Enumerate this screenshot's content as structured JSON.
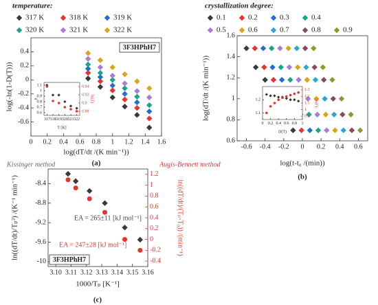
{
  "chart_data": [
    {
      "type": "scatter",
      "title": "temperature:",
      "xlabel": "log(dT/dt /(K min⁻¹))",
      "ylabel": "log(-ln(1-D(T)))",
      "label_box": "3F3HPhH7",
      "caption": "(a)",
      "x": [
        0.7,
        0.85,
        1.0,
        1.15,
        1.3,
        1.45
      ],
      "xlim": [
        0,
        1.6
      ],
      "xticks": [
        0,
        0.2,
        0.4,
        0.6,
        0.8,
        1,
        1.2,
        1.4,
        1.6
      ],
      "ylim": [
        -0.8,
        0.6
      ],
      "yticks": [
        -0.6,
        -0.4,
        -0.2,
        0,
        0.2,
        0.4
      ],
      "series": [
        {
          "name": "317 K",
          "color": "#3a3a3a",
          "marker": "diamond",
          "values": [
            0.02,
            -0.1,
            -0.25,
            -0.38,
            -0.5,
            -0.68
          ]
        },
        {
          "name": "318 K",
          "color": "#e8342e",
          "marker": "diamond",
          "values": [
            0.1,
            -0.02,
            -0.15,
            -0.28,
            -0.4,
            -0.55
          ]
        },
        {
          "name": "319 K",
          "color": "#1f6fd1",
          "marker": "diamond",
          "values": [
            0.16,
            0.04,
            -0.08,
            -0.2,
            -0.32,
            -0.45
          ]
        },
        {
          "name": "320 K",
          "color": "#1aa58a",
          "marker": "diamond",
          "values": [
            0.22,
            0.1,
            0,
            -0.12,
            -0.24,
            -0.36
          ]
        },
        {
          "name": "321 K",
          "color": "#a77bd6",
          "marker": "diamond",
          "values": [
            0.3,
            0.18,
            0.06,
            -0.05,
            -0.16,
            -0.25
          ]
        },
        {
          "name": "322 K",
          "color": "#d9a51c",
          "marker": "diamond",
          "values": [
            0.38,
            0.28,
            0.18,
            0.08,
            -0.02,
            -0.12
          ]
        }
      ]
    },
    {
      "type": "scatter",
      "xlabel": "T [K]",
      "ylabel": "n",
      "y2label": "ln(Z)",
      "x": [
        317,
        318,
        319,
        320,
        321,
        322
      ],
      "xlim": [
        316.5,
        322.5
      ],
      "xticks": [
        317,
        318,
        319,
        320,
        321,
        322
      ],
      "ylim": [
        0.55,
        1.15
      ],
      "yticks": [
        0.6,
        0.7,
        0.8,
        0.9,
        1,
        1.1
      ],
      "y2lim": [
        0.87,
        0.95
      ],
      "y2ticks": [
        0.88,
        0.9,
        0.92,
        0.94
      ],
      "series": [
        {
          "color": "#333333",
          "marker": "diamond",
          "values": [
            1.1,
            0.92,
            0.92,
            0.8,
            0.72,
            0.68
          ]
        },
        {
          "color": "#e8342e",
          "marker": "circle",
          "axis": "y2",
          "values": [
            0.94,
            0.905,
            0.9,
            0.89,
            0.885,
            0.88
          ]
        }
      ]
    },
    {
      "type": "scatter",
      "title": "crystallization degree:",
      "xlabel": "log(t-t₀ /(min))",
      "ylabel": "log(dT/dt /(K min⁻¹))",
      "caption": "(b)",
      "xlim": [
        -0.7,
        0.7
      ],
      "xticks": [
        -0.6,
        -0.4,
        -0.2,
        0,
        0.2,
        0.4,
        0.6
      ],
      "ylim": [
        0.6,
        1.6
      ],
      "yticks": [
        0.6,
        0.8,
        1,
        1.2,
        1.4,
        1.6
      ],
      "series": [
        {
          "name": "0.1",
          "color": "#3a3a3a",
          "marker": "diamond",
          "x": [
            -0.6,
            -0.5,
            -0.4,
            -0.3,
            -0.2,
            -0.1
          ],
          "values": [
            1.48,
            1.3,
            1.18,
            1.0,
            0.85,
            0.7
          ]
        },
        {
          "name": "0.2",
          "color": "#e8342e",
          "marker": "diamond",
          "x": [
            -0.51,
            -0.41,
            -0.31,
            -0.21,
            -0.11,
            -0.01
          ],
          "values": [
            1.48,
            1.3,
            1.18,
            1.0,
            0.85,
            0.7
          ]
        },
        {
          "name": "0.3",
          "color": "#1f6fd1",
          "marker": "diamond",
          "x": [
            -0.42,
            -0.32,
            -0.22,
            -0.12,
            -0.02,
            0.08
          ],
          "values": [
            1.48,
            1.3,
            1.18,
            1.0,
            0.85,
            0.7
          ]
        },
        {
          "name": "0.4",
          "color": "#1aa58a",
          "marker": "diamond",
          "x": [
            -0.33,
            -0.23,
            -0.13,
            -0.03,
            0.07,
            0.17
          ],
          "values": [
            1.48,
            1.3,
            1.18,
            1.0,
            0.85,
            0.7
          ]
        },
        {
          "name": "0.5",
          "color": "#a77bd6",
          "marker": "diamond",
          "x": [
            -0.24,
            -0.14,
            -0.04,
            0.06,
            0.16,
            0.26
          ],
          "values": [
            1.48,
            1.3,
            1.18,
            1.0,
            0.85,
            0.7
          ]
        },
        {
          "name": "0.6",
          "color": "#d9a51c",
          "marker": "diamond",
          "x": [
            -0.15,
            -0.05,
            0.05,
            0.15,
            0.25,
            0.35
          ],
          "values": [
            1.48,
            1.3,
            1.18,
            1.0,
            0.85,
            0.7
          ]
        },
        {
          "name": "0.7",
          "color": "#2aa6d9",
          "marker": "diamond",
          "x": [
            -0.06,
            0.04,
            0.14,
            0.24,
            0.34,
            0.44
          ],
          "values": [
            1.48,
            1.3,
            1.18,
            1.0,
            0.85,
            0.7
          ]
        },
        {
          "name": "0.8",
          "color": "#8a4a5a",
          "marker": "diamond",
          "x": [
            0.03,
            0.13,
            0.23,
            0.33,
            0.43,
            0.53
          ],
          "values": [
            1.48,
            1.3,
            1.18,
            1.0,
            0.85,
            0.7
          ]
        },
        {
          "name": "0.9",
          "color": "#8f9a2a",
          "marker": "diamond",
          "x": [
            0.12,
            0.22,
            0.32,
            0.42,
            0.52,
            0.62
          ],
          "values": [
            1.48,
            1.3,
            1.18,
            1.0,
            0.85,
            0.7
          ]
        }
      ]
    },
    {
      "type": "scatter",
      "xlabel": "D(T)",
      "y2label": "ln(F)",
      "x": [
        0.1,
        0.2,
        0.3,
        0.4,
        0.5,
        0.6,
        0.7,
        0.8,
        0.9
      ],
      "xlim": [
        0,
        1
      ],
      "xticks": [
        0,
        0.2,
        0.4,
        0.6,
        0.8,
        1
      ],
      "ylim": [
        1.05,
        1.3
      ],
      "yticks": [
        1.1,
        1.2
      ],
      "y2lim": [
        0.85,
        1.35
      ],
      "y2ticks": [
        0.9,
        1,
        1.1,
        1.2,
        1.3
      ],
      "series": [
        {
          "color": "#333333",
          "marker": "diamond",
          "values": [
            1.24,
            1.23,
            1.23,
            1.22,
            1.22,
            1.21,
            1.2,
            1.2,
            1.19
          ]
        },
        {
          "color": "#e8342e",
          "marker": "circle",
          "axis": "y2",
          "values": [
            0.95,
            1.05,
            1.1,
            1.15,
            1.18,
            1.2,
            1.22,
            1.24,
            1.26
          ]
        }
      ]
    },
    {
      "type": "scatter",
      "xlabel": "1000/Tₚ [K⁻¹]",
      "ylabel": "ln((dT/dt)/Tₚ²) /(K⁻¹ min⁻¹)",
      "y2label": "ln((dT/dt)/(Tₚ-T₀)) /(min⁻¹)",
      "label_box": "3F3HPhH7",
      "caption": "(c)",
      "annotations": [
        "Kissinger method",
        "Augis-Bennett method",
        "EA = 265±11 [kJ mol⁻¹]",
        "EA = 247±28 [kJ mol⁻¹]"
      ],
      "x": [
        3.108,
        3.113,
        3.122,
        3.132,
        3.145,
        3.155
      ],
      "xlim": [
        3.095,
        3.16
      ],
      "xticks": [
        {
          "value": 3.1,
          "label": "3.10"
        },
        3.11,
        3.12,
        3.13,
        3.14,
        3.15,
        3.16
      ],
      "ylim": [
        -10.1,
        -8.1
      ],
      "yticks": [
        -8.4,
        -8.8,
        -9.2,
        -9.6,
        -10
      ],
      "y2lim": [
        -0.5,
        1.3
      ],
      "y2ticks": [
        -0.4,
        -0.2,
        0,
        0.2,
        0.4,
        0.6,
        0.8,
        1,
        1.2
      ],
      "series": [
        {
          "color": "#3a3a3a",
          "marker": "diamond",
          "values": [
            -8.2,
            -8.35,
            -8.55,
            -8.8,
            -9.3,
            -9.55
          ]
        },
        {
          "color": "#e8342e",
          "marker": "circle",
          "axis": "y2",
          "values": [
            1.1,
            0.95,
            0.75,
            0.5,
            0.0,
            -0.2
          ]
        }
      ]
    }
  ]
}
